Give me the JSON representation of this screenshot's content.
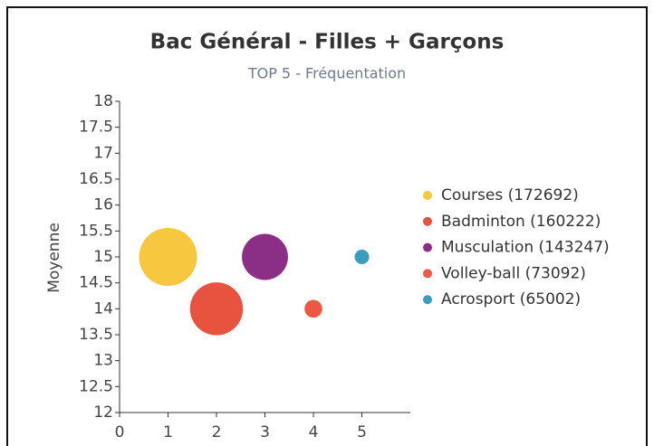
{
  "chart_data": {
    "type": "bubble",
    "title": "Bac Général - Filles + Garçons",
    "subtitle": "TOP 5 - Fréquentation",
    "y_label": "Moyenne",
    "xlim": [
      0,
      6
    ],
    "xticks": [
      0,
      1,
      2,
      3,
      4,
      5
    ],
    "ylim": [
      12,
      18
    ],
    "yticks": [
      12,
      12.5,
      13,
      13.5,
      14,
      14.5,
      15,
      15.5,
      16,
      16.5,
      17,
      17.5,
      18
    ],
    "legend": "right",
    "series": [
      {
        "name": "Courses (172692)",
        "color": "#f6c73f",
        "x": [
          1
        ],
        "values": [
          15
        ],
        "sizes": [
          172692
        ]
      },
      {
        "name": "Badminton (160222)",
        "color": "#e8533f",
        "x": [
          2
        ],
        "values": [
          14
        ],
        "sizes": [
          160222
        ]
      },
      {
        "name": "Musculation (143247)",
        "color": "#8b2e86",
        "x": [
          3
        ],
        "values": [
          15
        ],
        "sizes": [
          143247
        ]
      },
      {
        "name": "Volley-ball (73092)",
        "color": "#eb5844",
        "x": [
          4
        ],
        "values": [
          14
        ],
        "sizes": [
          73092
        ]
      },
      {
        "name": "Acrosport (65002)",
        "color": "#3a9dbd",
        "x": [
          5
        ],
        "values": [
          15
        ],
        "sizes": [
          65002
        ]
      }
    ]
  }
}
